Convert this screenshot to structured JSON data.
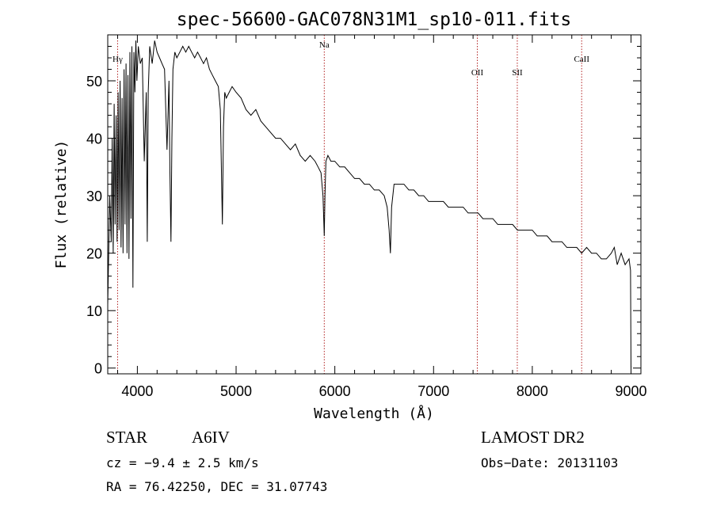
{
  "chart_data": {
    "type": "line",
    "title": "spec-56600-GAC078N31M1_sp10-011.fits",
    "xlabel": "Wavelength (Å)",
    "ylabel": "Flux (relative)",
    "xlim": [
      3700,
      9100
    ],
    "ylim": [
      -1,
      58
    ],
    "x_ticks": [
      4000,
      5000,
      6000,
      7000,
      8000,
      9000
    ],
    "y_ticks": [
      0,
      10,
      20,
      30,
      40,
      50
    ],
    "grid": false,
    "series": [
      {
        "x": [
          3700,
          3720,
          3735,
          3745,
          3755,
          3765,
          3775,
          3785,
          3795,
          3805,
          3815,
          3825,
          3835,
          3845,
          3855,
          3865,
          3875,
          3885,
          3895,
          3905,
          3915,
          3925,
          3935,
          3945,
          3955,
          3965,
          3975,
          3985,
          3995,
          4010,
          4030,
          4050,
          4070,
          4090,
          4100,
          4110,
          4125,
          4150,
          4175,
          4200,
          4225,
          4250,
          4275,
          4300,
          4320,
          4330,
          4340,
          4350,
          4360,
          4380,
          4400,
          4430,
          4460,
          4490,
          4520,
          4550,
          4580,
          4610,
          4640,
          4670,
          4700,
          4730,
          4760,
          4790,
          4820,
          4840,
          4850,
          4861,
          4872,
          4885,
          4900,
          4930,
          4960,
          5000,
          5050,
          5100,
          5150,
          5200,
          5250,
          5300,
          5350,
          5400,
          5450,
          5500,
          5550,
          5600,
          5650,
          5700,
          5750,
          5800,
          5830,
          5860,
          5880,
          5893,
          5900,
          5910,
          5930,
          5960,
          6000,
          6050,
          6100,
          6150,
          6200,
          6250,
          6300,
          6350,
          6400,
          6450,
          6500,
          6530,
          6550,
          6563,
          6575,
          6600,
          6650,
          6700,
          6750,
          6800,
          6850,
          6900,
          6950,
          7000,
          7050,
          7100,
          7150,
          7200,
          7250,
          7300,
          7350,
          7400,
          7450,
          7500,
          7550,
          7600,
          7650,
          7700,
          7750,
          7800,
          7850,
          7900,
          7950,
          8000,
          8050,
          8100,
          8150,
          8200,
          8250,
          8300,
          8350,
          8400,
          8450,
          8500,
          8550,
          8600,
          8650,
          8700,
          8750,
          8800,
          8830,
          8860,
          8900,
          8940,
          8980,
          8995,
          9000
        ],
        "y": [
          11,
          30,
          22,
          40,
          20,
          46,
          25,
          44,
          22,
          48,
          24,
          50,
          21,
          47,
          20,
          52,
          25,
          53,
          20,
          51,
          19,
          55,
          26,
          56,
          14,
          55,
          48,
          57,
          50,
          56,
          53,
          54,
          36,
          48,
          22,
          48,
          56,
          53,
          57,
          55,
          54,
          53,
          52,
          38,
          50,
          34,
          22,
          40,
          52,
          55,
          54,
          55,
          56,
          55,
          56,
          55,
          54,
          55,
          54,
          53,
          54,
          52,
          51,
          50,
          49,
          45,
          36,
          25,
          42,
          48,
          47,
          48,
          49,
          48,
          47,
          45,
          44,
          45,
          43,
          42,
          41,
          40,
          40,
          39,
          38,
          39,
          37,
          36,
          37,
          36,
          35,
          34,
          30,
          23,
          30,
          36,
          37,
          36,
          36,
          35,
          35,
          34,
          33,
          33,
          32,
          32,
          31,
          31,
          30,
          28,
          24,
          20,
          28,
          32,
          32,
          32,
          31,
          31,
          30,
          30,
          29,
          29,
          29,
          29,
          28,
          28,
          28,
          28,
          27,
          27,
          27,
          26,
          26,
          26,
          25,
          25,
          25,
          25,
          24,
          24,
          24,
          24,
          23,
          23,
          23,
          22,
          22,
          22,
          21,
          21,
          21,
          20,
          21,
          20,
          20,
          19,
          19,
          20,
          21,
          18,
          20,
          18,
          19,
          17,
          0
        ]
      }
    ],
    "vlines": [
      {
        "label": "Hγ",
        "x": 3800
      },
      {
        "label": "Na",
        "x": 5893
      },
      {
        "label": "OII",
        "x": 7443
      },
      {
        "label": "SII",
        "x": 7848
      },
      {
        "label": "CaII",
        "x": 8500
      }
    ]
  },
  "info": {
    "class": "STAR",
    "subclass": "A6IV",
    "survey": "LAMOST DR2",
    "cz": "cz = −9.4 ± 2.5 km/s",
    "obs_date": "Obs−Date: 20131103",
    "radec": "RA =  76.42250, DEC =  31.07743"
  },
  "colors": {
    "spectrum": "#000000",
    "vline": "#b22222"
  }
}
